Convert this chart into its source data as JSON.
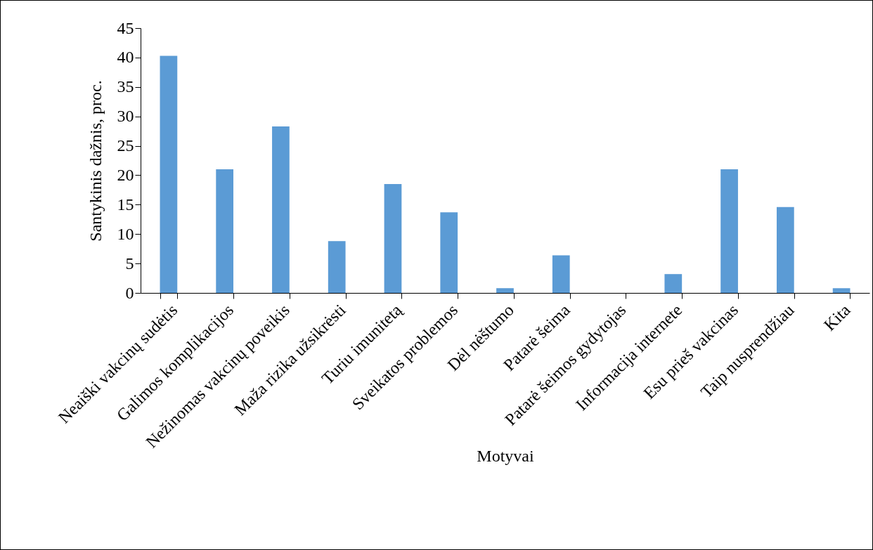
{
  "chart_data": {
    "type": "bar",
    "xlabel": "Motyvai",
    "ylabel": "Santykinis dažnis, proc.",
    "categories": [
      "Neaiški vakcinų sudėtis",
      "Galimos komplikacijos",
      "Nežinomas vakcinų poveikis",
      "Maža rizika užsikrėsti",
      "Turiu imunitetą",
      "Sveikatos problemos",
      "Dėl nėštumo",
      "Patarė šeima",
      "Patarė šeimos gydytojas",
      "Informacija internete",
      "Esu prieš vakcinas",
      "Taip nusprendžiau",
      "Kita"
    ],
    "values": [
      40.3,
      21.0,
      28.3,
      8.8,
      18.5,
      13.7,
      0.8,
      6.4,
      0,
      3.2,
      21.0,
      14.6,
      0.8
    ],
    "color": "#5b9bd5",
    "ylim": [
      0,
      45
    ],
    "yticks": [
      0,
      5,
      10,
      15,
      20,
      25,
      30,
      35,
      40,
      45
    ]
  }
}
